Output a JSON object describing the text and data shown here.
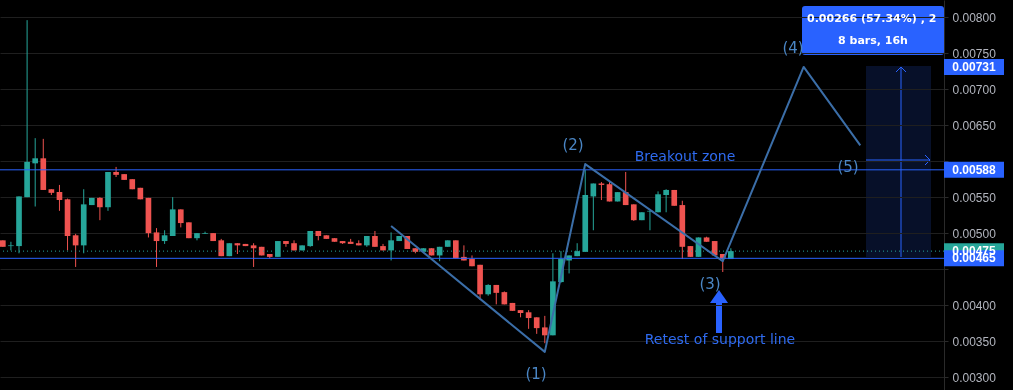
{
  "chart_data": {
    "type": "candlestick",
    "categories": [
      null,
      null,
      null,
      null,
      null,
      null,
      null,
      null,
      null,
      null,
      null,
      null,
      null,
      null,
      null,
      null,
      null,
      null,
      null,
      null,
      null,
      null,
      null,
      null,
      null,
      null,
      null,
      null,
      null,
      null,
      null,
      null,
      null,
      null,
      null,
      null,
      null,
      null,
      null,
      null,
      null,
      null,
      null,
      null,
      null,
      null,
      null,
      null,
      null,
      null,
      null,
      null,
      null,
      null,
      null,
      null,
      null,
      null,
      null,
      null,
      null,
      null,
      null,
      null,
      null,
      null,
      null,
      null,
      null,
      null,
      null,
      null,
      null,
      null,
      null,
      null,
      null,
      null,
      null,
      null,
      null,
      null,
      null,
      null,
      null,
      null,
      null,
      null,
      null,
      null,
      null,
      null,
      null,
      null,
      null,
      null,
      null,
      null,
      null,
      null,
      null,
      null,
      null,
      null,
      null,
      null,
      null,
      null,
      null,
      null,
      null,
      null,
      null,
      null,
      null,
      null,
      null
    ],
    "ohlc": [
      [
        0.0049,
        0.0049,
        0.00481,
        0.00481
      ],
      [
        0.00482,
        0.00488,
        0.00476,
        0.00483
      ],
      [
        0.00482,
        0.00551,
        0.00472,
        0.00551
      ],
      [
        0.0055,
        0.00796,
        0.0055,
        0.00599
      ],
      [
        0.00597,
        0.00632,
        0.00537,
        0.00604
      ],
      [
        0.00604,
        0.00631,
        0.0056,
        0.0056
      ],
      [
        0.00561,
        0.00561,
        0.00553,
        0.00556
      ],
      [
        0.00557,
        0.00567,
        0.00531,
        0.00546
      ],
      [
        0.00547,
        0.00548,
        0.00476,
        0.00496
      ],
      [
        0.00497,
        0.00499,
        0.00453,
        0.00483
      ],
      [
        0.00483,
        0.00561,
        0.00472,
        0.0054
      ],
      [
        0.00539,
        0.00549,
        0.00539,
        0.00549
      ],
      [
        0.00549,
        0.0055,
        0.00518,
        0.00536
      ],
      [
        0.00536,
        0.00585,
        0.00531,
        0.00585
      ],
      [
        0.00585,
        0.00592,
        0.00578,
        0.00581
      ],
      [
        0.00582,
        0.00582,
        0.00574,
        0.00574
      ],
      [
        0.00575,
        0.00575,
        0.00561,
        0.00561
      ],
      [
        0.00563,
        0.00563,
        0.00547,
        0.00547
      ],
      [
        0.00549,
        0.00549,
        0.00494,
        0.005
      ],
      [
        0.00501,
        0.00507,
        0.00453,
        0.00489
      ],
      [
        0.00489,
        0.00504,
        0.00485,
        0.00497
      ],
      [
        0.00496,
        0.0055,
        0.00496,
        0.00533
      ],
      [
        0.00533,
        0.00533,
        0.00508,
        0.00514
      ],
      [
        0.00515,
        0.00515,
        0.00493,
        0.00493
      ],
      [
        0.00493,
        0.005,
        0.0049,
        0.005
      ],
      [
        0.00499,
        0.00502,
        0.00499,
        0.005
      ],
      [
        0.005,
        0.005,
        0.00489,
        0.00489
      ],
      [
        0.0049,
        0.00492,
        0.00468,
        0.00468
      ],
      [
        0.00468,
        0.00486,
        0.00468,
        0.00486
      ],
      [
        0.00486,
        0.00486,
        0.00471,
        0.00483
      ],
      [
        0.00485,
        0.00485,
        0.00482,
        0.00482
      ],
      [
        0.00483,
        0.00486,
        0.00453,
        0.00479
      ],
      [
        0.00481,
        0.00481,
        0.00469,
        0.00469
      ],
      [
        0.00471,
        0.00471,
        0.00465,
        0.00467
      ],
      [
        0.00467,
        0.00489,
        0.00467,
        0.00489
      ],
      [
        0.00489,
        0.00489,
        0.00481,
        0.00485
      ],
      [
        0.00486,
        0.0049,
        0.00476,
        0.00476
      ],
      [
        0.00476,
        0.00483,
        0.00476,
        0.00483
      ],
      [
        0.00482,
        0.00503,
        0.00481,
        0.00503
      ],
      [
        0.00503,
        0.00503,
        0.0049,
        0.00496
      ],
      [
        0.00497,
        0.00497,
        0.00492,
        0.00492
      ],
      [
        0.00493,
        0.00493,
        0.00488,
        0.00488
      ],
      [
        0.00489,
        0.00489,
        0.00485,
        0.00486
      ],
      [
        0.00488,
        0.00492,
        0.00485,
        0.00485
      ],
      [
        0.00486,
        0.0049,
        0.00483,
        0.00483
      ],
      [
        0.00483,
        0.00496,
        0.00481,
        0.00496
      ],
      [
        0.00496,
        0.00503,
        0.00481,
        0.00481
      ],
      [
        0.00482,
        0.00485,
        0.00476,
        0.00476
      ],
      [
        0.00476,
        0.00501,
        0.00462,
        0.0049
      ],
      [
        0.00489,
        0.00496,
        0.00489,
        0.00496
      ],
      [
        0.00496,
        0.00496,
        0.00478,
        0.00478
      ],
      [
        0.00479,
        0.00479,
        0.00472,
        0.00474
      ],
      [
        0.00474,
        0.00479,
        0.00474,
        0.00479
      ],
      [
        0.00479,
        0.00479,
        0.00469,
        0.00469
      ],
      [
        0.00469,
        0.00481,
        0.00461,
        0.00481
      ],
      [
        0.00481,
        0.0049,
        0.00481,
        0.0049
      ],
      [
        0.0049,
        0.0049,
        0.00465,
        0.00465
      ],
      [
        0.00467,
        0.00483,
        0.00462,
        0.00462
      ],
      [
        0.00464,
        0.00469,
        0.00454,
        0.00454
      ],
      [
        0.00456,
        0.00456,
        0.00407,
        0.00415
      ],
      [
        0.00415,
        0.00429,
        0.00413,
        0.00428
      ],
      [
        0.00428,
        0.00428,
        0.00401,
        0.00417
      ],
      [
        0.00418,
        0.00419,
        0.00401,
        0.00401
      ],
      [
        0.00403,
        0.00403,
        0.00392,
        0.00392
      ],
      [
        0.00393,
        0.00393,
        0.00383,
        0.00389
      ],
      [
        0.0039,
        0.00393,
        0.00367,
        0.00382
      ],
      [
        0.00383,
        0.00383,
        0.0036,
        0.00368
      ],
      [
        0.00369,
        0.00385,
        0.00347,
        0.00358
      ],
      [
        0.00358,
        0.00472,
        0.00358,
        0.00433
      ],
      [
        0.00432,
        0.00475,
        0.00431,
        0.00464
      ],
      [
        0.00462,
        0.00469,
        0.00444,
        0.00469
      ],
      [
        0.00468,
        0.00486,
        0.00468,
        0.00475
      ],
      [
        0.00474,
        0.00588,
        0.00474,
        0.00553
      ],
      [
        0.00551,
        0.00569,
        0.00504,
        0.00569
      ],
      [
        0.00569,
        0.00571,
        0.00546,
        0.00567
      ],
      [
        0.00568,
        0.00571,
        0.00544,
        0.00544
      ],
      [
        0.00544,
        0.00557,
        0.00544,
        0.00557
      ],
      [
        0.00557,
        0.00585,
        0.00539,
        0.00539
      ],
      [
        0.0054,
        0.0054,
        0.00517,
        0.00518
      ],
      [
        0.00518,
        0.00529,
        0.00518,
        0.00529
      ],
      [
        0.0053,
        0.00531,
        0.00504,
        0.00531
      ],
      [
        0.00529,
        0.00558,
        0.00529,
        0.00554
      ],
      [
        0.00553,
        0.00561,
        0.00529,
        0.0056
      ],
      [
        0.0056,
        0.0056,
        0.00538,
        0.00538
      ],
      [
        0.00539,
        0.00545,
        0.00464,
        0.00481
      ],
      [
        0.00482,
        0.00482,
        0.00467,
        0.00467
      ],
      [
        0.00467,
        0.00494,
        0.00467,
        0.00494
      ],
      [
        0.00494,
        0.00495,
        0.00488,
        0.00488
      ],
      [
        0.00489,
        0.00489,
        0.00469,
        0.00469
      ],
      [
        0.00471,
        0.00471,
        0.00446,
        0.00464
      ],
      [
        0.00464,
        0.00479,
        0.00464,
        0.00475
      ],
      null,
      null,
      null,
      null,
      null,
      null,
      null,
      null,
      null,
      null,
      null,
      null,
      null,
      null,
      null,
      null,
      null,
      null,
      null,
      null,
      null,
      null,
      null,
      null,
      null,
      null
    ],
    "series": [
      {
        "type": "line",
        "color": "#3b6ea8",
        "values": [
          null,
          null,
          null,
          null,
          null,
          null,
          null,
          null,
          null,
          null,
          null,
          null,
          null,
          null,
          null,
          null,
          null,
          null,
          null,
          null,
          null,
          null,
          null,
          null,
          null,
          null,
          null,
          null,
          null,
          null,
          null,
          null,
          null,
          null,
          null,
          null,
          null,
          null,
          null,
          null,
          null,
          null,
          null,
          null,
          null,
          null,
          null,
          null,
          0.0051,
          null,
          null,
          null,
          null,
          null,
          null,
          null,
          null,
          null,
          null,
          null,
          null,
          null,
          null,
          null,
          null,
          null,
          null,
          0.00335,
          null,
          null,
          null,
          null,
          0.00596,
          null,
          null,
          null,
          null,
          null,
          null,
          null,
          null,
          null,
          null,
          null,
          null,
          null,
          null,
          null,
          null,
          0.00461,
          null,
          null,
          null,
          null,
          null,
          null,
          null,
          null,
          null,
          0.00731,
          null,
          null,
          null,
          null,
          null,
          null,
          0.00622,
          null,
          null,
          null,
          null,
          null,
          null,
          null,
          null,
          null,
          null
        ]
      }
    ],
    "ylim": [
      0.00282,
      0.00824
    ],
    "yticks": [
      {
        "value": 0.003,
        "label": "0.00300"
      },
      {
        "value": 0.0035,
        "label": "0.00350"
      },
      {
        "value": 0.004,
        "label": "0.00400"
      },
      {
        "value": 0.0045,
        "label": null
      },
      {
        "value": 0.005,
        "label": "0.00500"
      },
      {
        "value": 0.0055,
        "label": "0.00550"
      },
      {
        "value": 0.006,
        "label": null
      },
      {
        "value": 0.0065,
        "label": "0.00650"
      },
      {
        "value": 0.007,
        "label": "0.00700"
      },
      {
        "value": 0.0075,
        "label": "0.00750"
      },
      {
        "value": 0.008,
        "label": "0.00800"
      }
    ],
    "grid": "y",
    "tick_labels": "y",
    "ref_lines": [
      {
        "axis": "y",
        "value": 0.00588,
        "label": "0.00588",
        "color": "#2962ff",
        "line_style": "solid"
      },
      {
        "axis": "y",
        "value": 0.00475,
        "label": "0.00475",
        "color": "#26a69a",
        "line_style": "dotted"
      },
      {
        "axis": "y",
        "value": 0.00465,
        "label": "0.00465",
        "color": "#2962ff",
        "line_style": "solid"
      }
    ],
    "annotations": [
      "(1)",
      "(2)",
      "(3)",
      "(4)",
      "(5)",
      "Breakout zone",
      "Retest of support line",
      "0.00266 (57.34%) , 2",
      "8 bars, 16h",
      "0.00731"
    ]
  }
}
